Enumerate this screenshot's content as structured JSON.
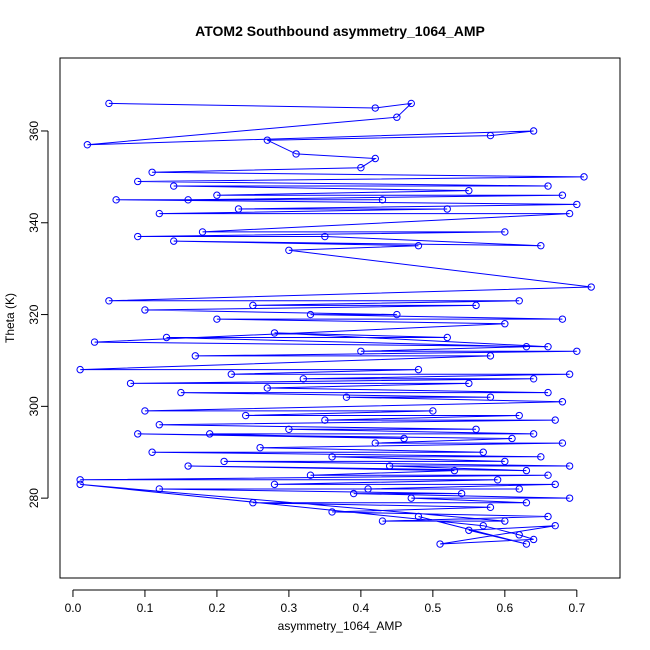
{
  "chart_data": {
    "type": "line",
    "title": "ATOM2 Southbound asymmetry_1064_AMP",
    "x_label": "asymmetry_1064_AMP",
    "y_label": "Theta (K)",
    "color": "#0000ff",
    "x": [
      0.05,
      0.42,
      0.47,
      0.45,
      0.02,
      0.64,
      0.58,
      0.27,
      0.31,
      0.42,
      0.4,
      0.11,
      0.71,
      0.09,
      0.66,
      0.14,
      0.55,
      0.2,
      0.68,
      0.16,
      0.43,
      0.06,
      0.7,
      0.23,
      0.52,
      0.12,
      0.69,
      0.18,
      0.6,
      0.09,
      0.35,
      0.65,
      0.14,
      0.48,
      0.3,
      0.72,
      0.05,
      0.62,
      0.25,
      0.56,
      0.1,
      0.45,
      0.33,
      0.68,
      0.2,
      0.6,
      0.03,
      0.66,
      0.28,
      0.52,
      0.13,
      0.63,
      0.4,
      0.7,
      0.17,
      0.58,
      0.01,
      0.48,
      0.22,
      0.69,
      0.32,
      0.64,
      0.08,
      0.55,
      0.27,
      0.66,
      0.15,
      0.58,
      0.38,
      0.68,
      0.1,
      0.5,
      0.24,
      0.62,
      0.35,
      0.67,
      0.12,
      0.56,
      0.3,
      0.64,
      0.19,
      0.46,
      0.09,
      0.61,
      0.42,
      0.68,
      0.26,
      0.57,
      0.11,
      0.65,
      0.36,
      0.6,
      0.21,
      0.69,
      0.44,
      0.63,
      0.16,
      0.53,
      0.33,
      0.66,
      0.01,
      0.59,
      0.28,
      0.67,
      0.41,
      0.62,
      0.12,
      0.54,
      0.39,
      0.69,
      0.47,
      0.63,
      0.25,
      0.58,
      0.36,
      0.66,
      0.43,
      0.6,
      0.01,
      0.57,
      0.62,
      0.64,
      0.51,
      0.67,
      0.55,
      0.63,
      0.48
    ],
    "values": [
      366,
      365,
      366,
      363,
      357,
      360,
      359,
      358,
      355,
      354,
      352,
      351,
      350,
      349,
      348,
      348,
      347,
      346,
      346,
      345,
      345,
      345,
      344,
      343,
      343,
      342,
      342,
      338,
      338,
      337,
      337,
      335,
      336,
      335,
      334,
      326,
      323,
      323,
      322,
      322,
      321,
      320,
      320,
      319,
      319,
      318,
      314,
      313,
      316,
      315,
      315,
      313,
      312,
      312,
      311,
      311,
      308,
      308,
      307,
      307,
      306,
      306,
      305,
      305,
      304,
      303,
      303,
      302,
      302,
      301,
      299,
      299,
      298,
      298,
      297,
      297,
      296,
      295,
      295,
      294,
      294,
      293,
      294,
      293,
      292,
      292,
      291,
      290,
      290,
      289,
      289,
      288,
      288,
      287,
      287,
      286,
      287,
      286,
      285,
      285,
      284,
      284,
      283,
      283,
      282,
      282,
      282,
      281,
      281,
      280,
      280,
      279,
      279,
      278,
      277,
      276,
      275,
      275,
      283,
      274,
      272,
      271,
      270,
      274,
      273,
      270,
      276
    ],
    "xlim": [
      -0.018,
      0.76
    ],
    "ylim": [
      262.6,
      375.9
    ],
    "xticks": [
      {
        "value": 0,
        "label": "0.0"
      },
      0.1,
      0.2,
      0.3,
      0.4,
      0.5,
      0.6,
      0.7
    ],
    "yticks": [
      280,
      300,
      320,
      340,
      360
    ]
  }
}
